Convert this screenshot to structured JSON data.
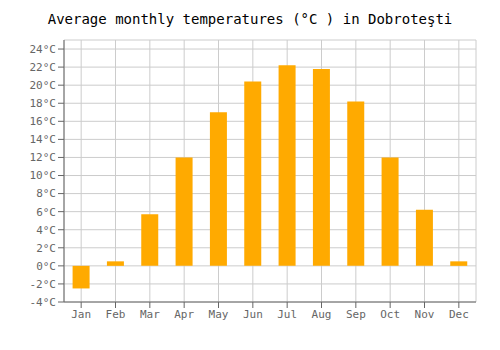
{
  "chart_data": {
    "type": "bar",
    "title": "Average monthly temperatures (°C ) in Dobroteşti",
    "categories": [
      "Jan",
      "Feb",
      "Mar",
      "Apr",
      "May",
      "Jun",
      "Jul",
      "Aug",
      "Sep",
      "Oct",
      "Nov",
      "Dec"
    ],
    "values": [
      -2.5,
      0.5,
      5.7,
      12.0,
      17.0,
      20.4,
      22.2,
      21.8,
      18.2,
      12.0,
      6.2,
      0.5
    ],
    "color": "#FFAA00",
    "ylim": [
      -4,
      25
    ],
    "yticks": [
      {
        "value": -4,
        "label": "-4°C"
      },
      {
        "value": -2,
        "label": "-2°C"
      },
      {
        "value": 0,
        "label": "0°C"
      },
      {
        "value": 2,
        "label": "2°C"
      },
      {
        "value": 4,
        "label": "4°C"
      },
      {
        "value": 6,
        "label": "6°C"
      },
      {
        "value": 8,
        "label": "8°C"
      },
      {
        "value": 10,
        "label": "10°C"
      },
      {
        "value": 12,
        "label": "12°C"
      },
      {
        "value": 14,
        "label": "14°C"
      },
      {
        "value": 16,
        "label": "16°C"
      },
      {
        "value": 18,
        "label": "18°C"
      },
      {
        "value": 20,
        "label": "20°C"
      },
      {
        "value": 22,
        "label": "22°C"
      },
      {
        "value": 24,
        "label": "24°C"
      }
    ],
    "grid": true
  }
}
